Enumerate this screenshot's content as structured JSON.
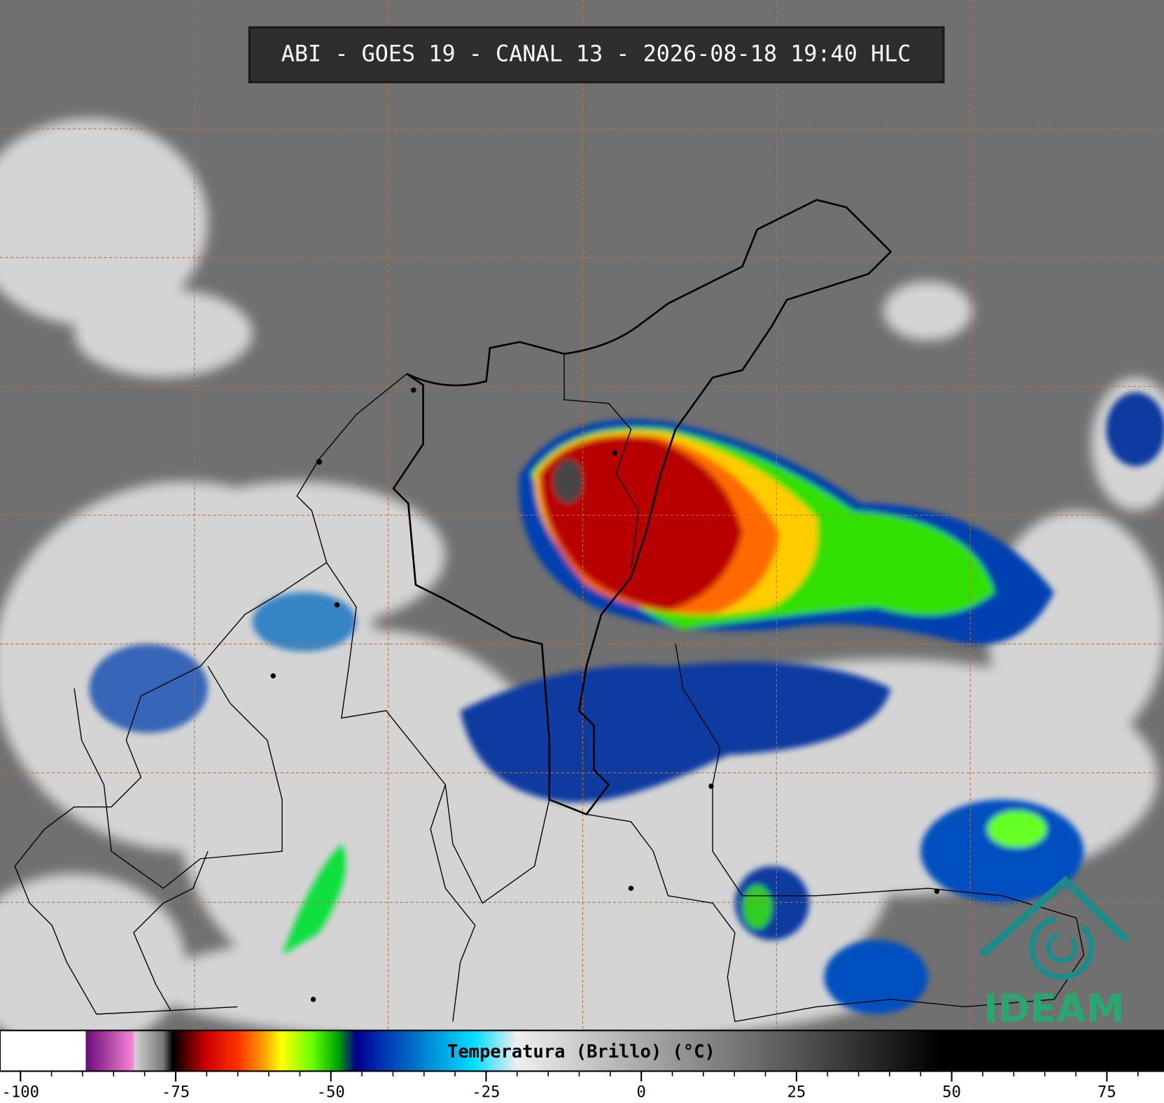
{
  "chart_data": {
    "type": "colorbar",
    "title": "ABI - GOES 19 - CANAL 13 - 2026-08-18 19:40 HLC",
    "xlabel": "Temperatura (Brillo) (°C)",
    "logo": "IDEAM",
    "xlim": [
      -103.3,
      84.2
    ],
    "xticks": [
      -100,
      -75,
      -50,
      -25,
      0,
      25,
      50,
      75
    ],
    "xminorticks": [
      -95,
      -90,
      -85,
      -80,
      -70,
      -65,
      -60,
      -55,
      -45,
      -40,
      -35,
      -30,
      -20,
      -15,
      -10,
      -5,
      5,
      10,
      15,
      20,
      30,
      35,
      40,
      45,
      55,
      60,
      65,
      70,
      80
    ],
    "colormap": [
      {
        "value": -103.3,
        "color": "#ffffff"
      },
      {
        "value": -89.5,
        "color": "#ffffff"
      },
      {
        "value": -89.5,
        "color": "#6a0a7a"
      },
      {
        "value": -82,
        "color": "#f582d2"
      },
      {
        "value": -81.5,
        "color": "#d0d0d0"
      },
      {
        "value": -77,
        "color": "#777777"
      },
      {
        "value": -75.5,
        "color": "#000000"
      },
      {
        "value": -73,
        "color": "#600000"
      },
      {
        "value": -70,
        "color": "#cc0000"
      },
      {
        "value": -65,
        "color": "#ff3300"
      },
      {
        "value": -61,
        "color": "#ff9900"
      },
      {
        "value": -58,
        "color": "#ffff00"
      },
      {
        "value": -53,
        "color": "#66ff00"
      },
      {
        "value": -49,
        "color": "#00aa00"
      },
      {
        "value": -46,
        "color": "#000088"
      },
      {
        "value": -43,
        "color": "#0022aa"
      },
      {
        "value": -36,
        "color": "#0077cc"
      },
      {
        "value": -27,
        "color": "#00ddff"
      },
      {
        "value": -20,
        "color": "#eeeeee"
      },
      {
        "value": 0,
        "color": "#aaaaaa"
      },
      {
        "value": 25,
        "color": "#555555"
      },
      {
        "value": 48,
        "color": "#000000"
      },
      {
        "value": 84.2,
        "color": "#000000"
      }
    ]
  }
}
